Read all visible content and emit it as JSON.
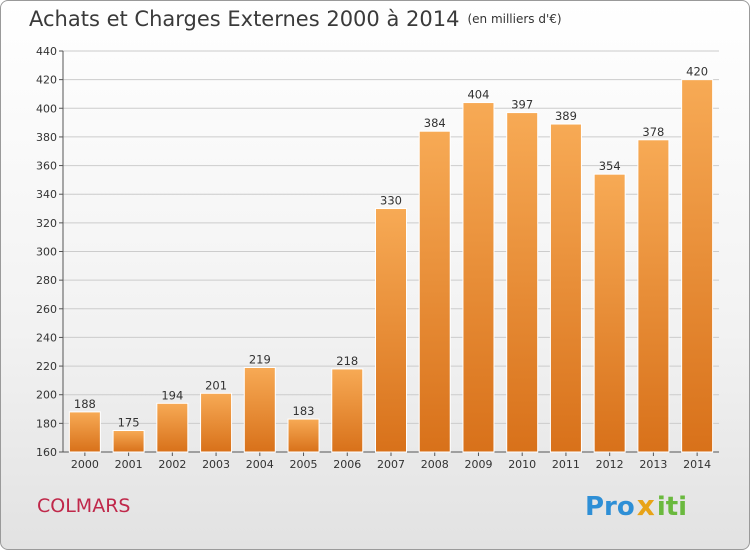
{
  "title": "Achats et Charges Externes 2000 à 2014",
  "unit": "(en milliers d'€)",
  "commune": "COLMARS",
  "logo": {
    "part1": "Pro",
    "mark": "x",
    "part2": "iti"
  },
  "colors": {
    "bar": "#f0922e",
    "bar_light": "#f7ab5c",
    "bar_dark": "#d9731a",
    "grid": "#cfcfcf",
    "commune": "#c0284a"
  },
  "chart_data": {
    "type": "bar",
    "title": "Achats et Charges Externes 2000 à 2014",
    "xlabel": "",
    "ylabel": "(en milliers d'€)",
    "categories": [
      "2000",
      "2001",
      "2002",
      "2003",
      "2004",
      "2005",
      "2006",
      "2007",
      "2008",
      "2009",
      "2010",
      "2011",
      "2012",
      "2013",
      "2014"
    ],
    "values": [
      188,
      175,
      194,
      201,
      219,
      183,
      218,
      330,
      384,
      404,
      397,
      389,
      354,
      378,
      420
    ],
    "ylim": [
      160,
      440
    ],
    "yticks": [
      160,
      180,
      200,
      220,
      240,
      260,
      280,
      300,
      320,
      340,
      360,
      380,
      400,
      420,
      440
    ],
    "grid": true
  }
}
